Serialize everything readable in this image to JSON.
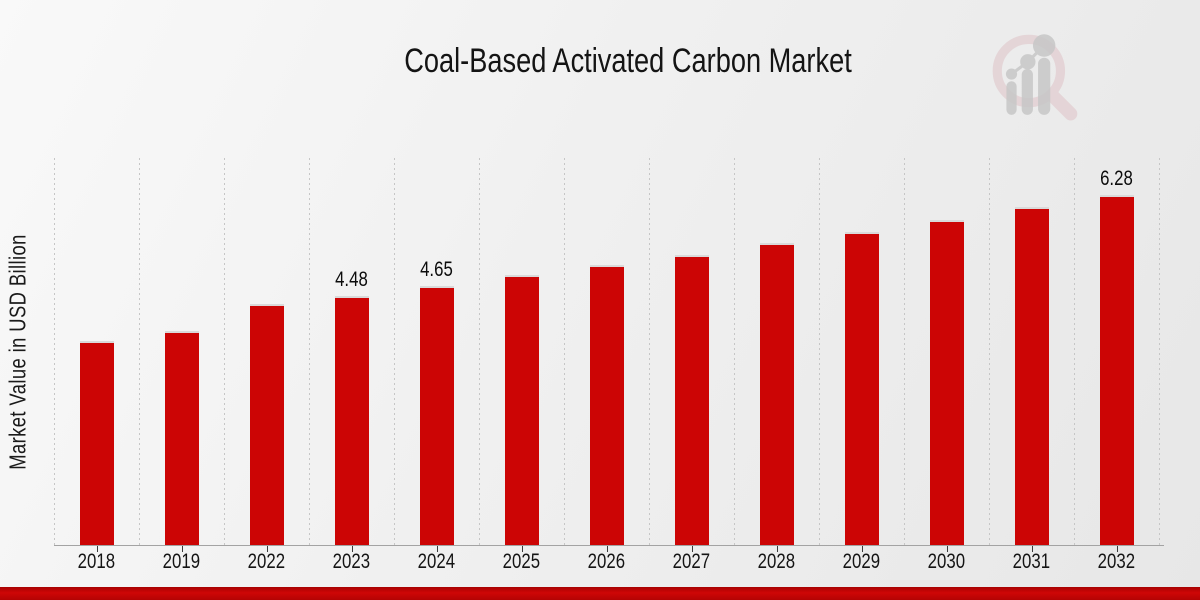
{
  "title": "Coal-Based Activated Carbon Market",
  "y_axis_label": "Market Value in USD Billion",
  "watermark_icon": "magnifier-bar-chart-logo",
  "colors": {
    "bar": "#cc0505",
    "footer_bar": "#c40404",
    "grid": "#c6c6c6",
    "axis": "#a3a3a3",
    "text": "#141414",
    "watermark_pink": "#dfc3c7",
    "watermark_gray": "#c7c7c7"
  },
  "chart_data": {
    "type": "bar",
    "title": "Coal-Based Activated Carbon Market",
    "xlabel": "",
    "ylabel": "Market Value in USD Billion",
    "categories": [
      "2018",
      "2019",
      "2022",
      "2023",
      "2024",
      "2025",
      "2026",
      "2027",
      "2028",
      "2029",
      "2030",
      "2031",
      "2032"
    ],
    "values": [
      3.66,
      3.85,
      4.33,
      4.48,
      4.65,
      4.85,
      5.03,
      5.21,
      5.42,
      5.63,
      5.84,
      6.07,
      6.28
    ],
    "data_labels": {
      "2023": "4.48",
      "2024": "4.65",
      "2032": "6.28"
    },
    "ylim": [
      0,
      6.95
    ],
    "grid": "vertical dotted gridlines",
    "legend": "none",
    "bar_color": "#cc0505"
  }
}
